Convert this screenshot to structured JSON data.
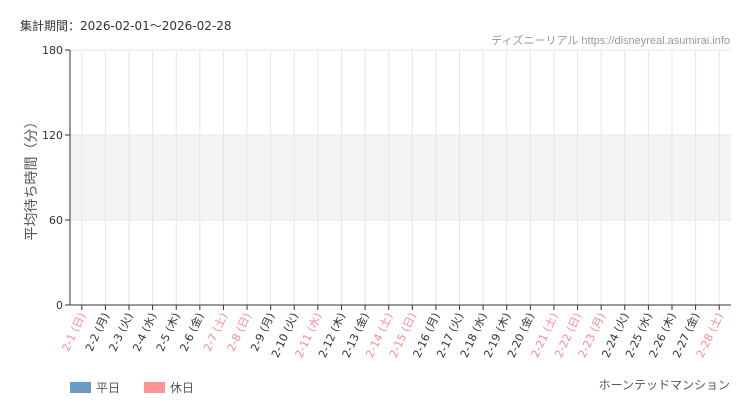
{
  "header": {
    "title": "集計期間：2026-02-01～2026-02-28",
    "credit": "ディズニーリアル https://disneyreal.asumirai.info"
  },
  "series_name": "ホーンテッドマンション",
  "legend": [
    {
      "label": "平日",
      "color": "#6b9ac6"
    },
    {
      "label": "休日",
      "color": "#ff9498"
    }
  ],
  "colors": {
    "weekday_label": "#333333",
    "holiday_label": "#ff8a8e",
    "band": "#f4f4f4",
    "grid": "#e6e6e6"
  },
  "chart_data": {
    "type": "bar",
    "title": "集計期間：2026-02-01～2026-02-28",
    "xlabel": "",
    "ylabel": "平均待ち時間（分）",
    "ylim": [
      0,
      180
    ],
    "yticks": [
      0,
      60,
      120,
      180
    ],
    "shaded_band": [
      60,
      120
    ],
    "grid": true,
    "legend_placement": "bottom-left",
    "categories": [
      "2-1 (日)",
      "2-2 (月)",
      "2-3 (火)",
      "2-4 (水)",
      "2-5 (木)",
      "2-6 (金)",
      "2-7 (土)",
      "2-8 (日)",
      "2-9 (月)",
      "2-10 (火)",
      "2-11 (水)",
      "2-12 (木)",
      "2-13 (金)",
      "2-14 (土)",
      "2-15 (日)",
      "2-16 (月)",
      "2-17 (火)",
      "2-18 (水)",
      "2-19 (木)",
      "2-20 (金)",
      "2-21 (土)",
      "2-22 (日)",
      "2-23 (月)",
      "2-24 (火)",
      "2-25 (水)",
      "2-26 (木)",
      "2-27 (金)",
      "2-28 (土)"
    ],
    "holiday": [
      true,
      false,
      false,
      false,
      false,
      false,
      true,
      true,
      false,
      false,
      true,
      false,
      false,
      true,
      true,
      false,
      false,
      false,
      false,
      false,
      true,
      true,
      true,
      false,
      false,
      false,
      false,
      true
    ],
    "values": [
      null,
      null,
      null,
      null,
      null,
      null,
      null,
      null,
      null,
      null,
      null,
      null,
      null,
      null,
      null,
      null,
      null,
      null,
      null,
      null,
      null,
      null,
      null,
      null,
      null,
      null,
      null,
      null
    ]
  }
}
